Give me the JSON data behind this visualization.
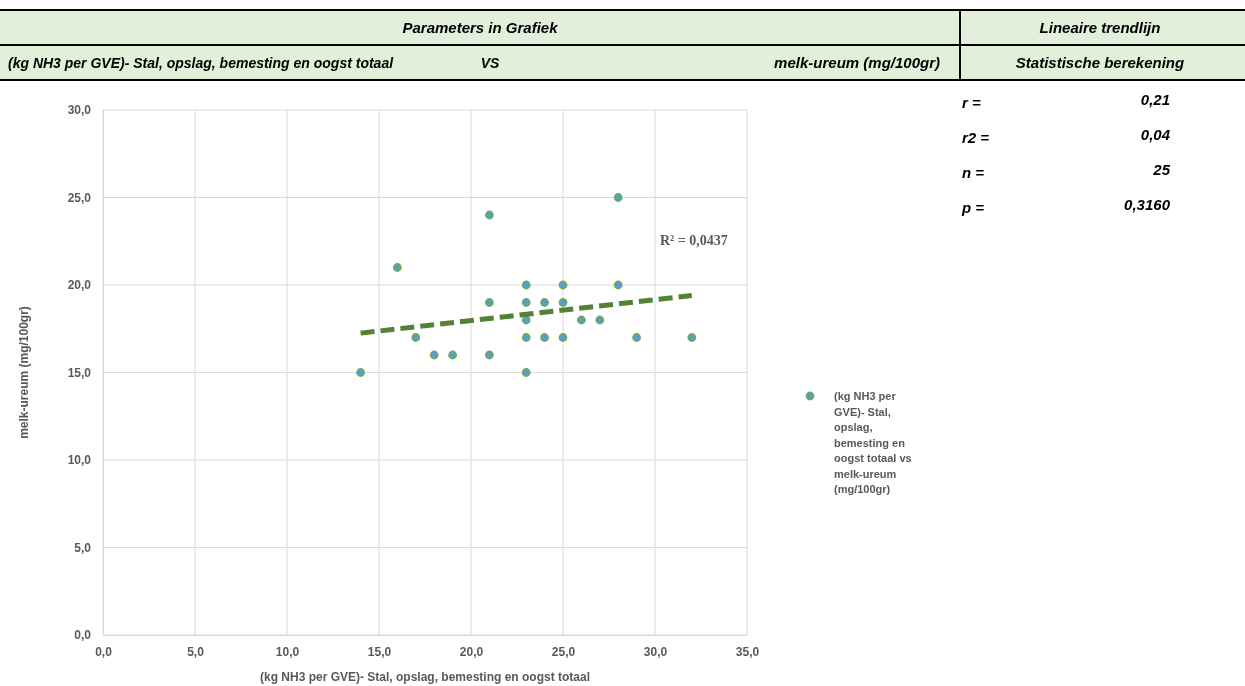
{
  "chart_data": {
    "type": "scatter",
    "xlabel": "(kg NH3 per GVE)- Stal, opslag, bemesting en oogst totaal",
    "ylabel": "melk-ureum (mg/100gr)",
    "xlim": [
      0,
      35
    ],
    "ylim": [
      0,
      30
    ],
    "xticks": [
      {
        "value": 0,
        "label": "0,0"
      },
      {
        "value": 5,
        "label": "5,0"
      },
      {
        "value": 10,
        "label": "10,0"
      },
      {
        "value": 15,
        "label": "15,0"
      },
      {
        "value": 20,
        "label": "20,0"
      },
      {
        "value": 25,
        "label": "25,0"
      },
      {
        "value": 30,
        "label": "30,0"
      },
      {
        "value": 35,
        "label": "35,0"
      }
    ],
    "yticks": [
      {
        "value": 0,
        "label": "0,0"
      },
      {
        "value": 5,
        "label": "5,0"
      },
      {
        "value": 10,
        "label": "10,0"
      },
      {
        "value": 15,
        "label": "15,0"
      },
      {
        "value": 20,
        "label": "20,0"
      },
      {
        "value": 25,
        "label": "25,0"
      },
      {
        "value": 30,
        "label": "30,0"
      }
    ],
    "grid": true,
    "legend": "right",
    "marker": "circle",
    "series": [
      {
        "name": "(kg NH3 per GVE)- Stal, opslag, bemesting en oogst totaal vs melk-ureum (mg/100gr)",
        "color": "#5b9bd5",
        "x": [
          14,
          16,
          17,
          18,
          19,
          21,
          21,
          21,
          23,
          23,
          23,
          23,
          23,
          24,
          24,
          25,
          25,
          25,
          26,
          27,
          28,
          28,
          29,
          32
        ],
        "values": [
          15,
          21,
          17,
          16,
          16,
          24,
          19,
          16,
          20,
          19,
          18,
          17,
          15,
          19,
          17,
          20,
          19,
          17,
          18,
          18,
          25,
          20,
          17,
          17
        ]
      },
      {
        "type": "line",
        "color": "#548235",
        "line_style": "dashed",
        "marker": "none",
        "x": [
          14,
          32
        ],
        "values": [
          17.25,
          19.4
        ]
      }
    ],
    "annotations": [
      "Parameters in Grafiek",
      "Lineaire trendlijn",
      "(kg NH3 per GVE)- Stal, opslag, bemesting en oogst totaal",
      "VS",
      "melk-ureum (mg/100gr)",
      "Statistische berekening",
      "r =",
      "0,21",
      "r2 =",
      "0,04",
      "n =",
      "25",
      "p =",
      "0,3160",
      "R² = 0,0437"
    ]
  }
}
